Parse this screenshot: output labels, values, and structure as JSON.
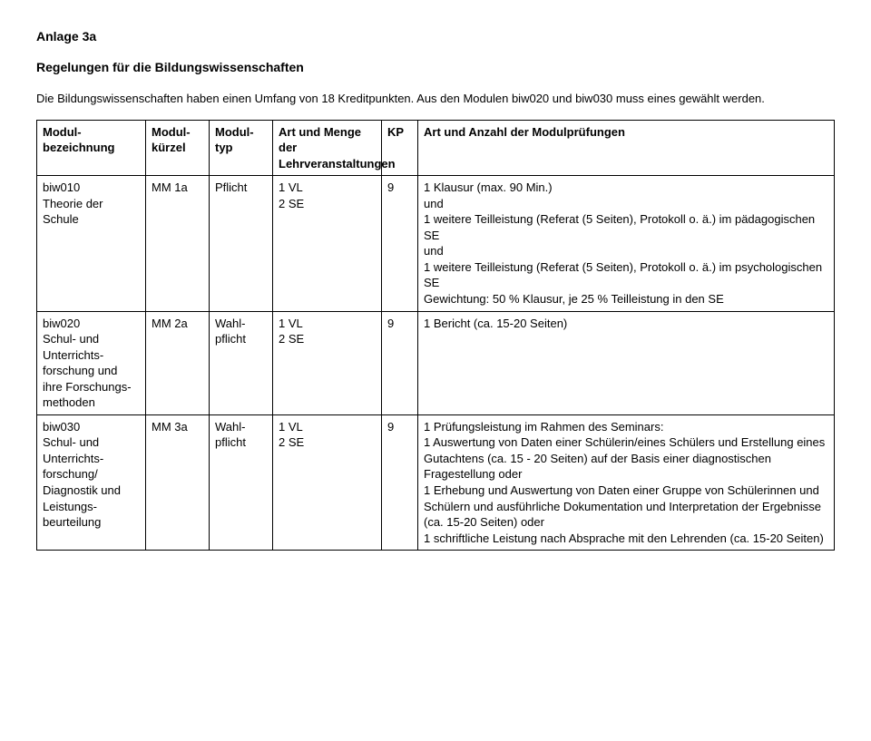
{
  "heading1": "Anlage 3a",
  "heading2": "Regelungen für die Bildungswissenschaften",
  "intro": "Die Bildungswissenschaften haben einen Umfang von 18 Kreditpunkten. Aus den Modulen biw020 und biw030 muss eines gewählt werden.",
  "table": {
    "headers": {
      "c1": "Modul-bezeichnung",
      "c2": "Modul-kürzel",
      "c3": "Modul-typ",
      "c4": "Art und Menge der Lehrveranstaltungen",
      "c5": "KP",
      "c6": "Art und Anzahl der Modulprüfungen"
    },
    "rows": [
      {
        "c1": "biw010\nTheorie der Schule",
        "c2": "MM 1a",
        "c3": "Pflicht",
        "c4": "1 VL\n2 SE",
        "c5": "9",
        "c6": "1 Klausur (max. 90 Min.)\nund\n1 weitere Teilleistung (Referat (5 Seiten), Protokoll o. ä.) im pädagogischen SE\nund\n1 weitere Teilleistung (Referat (5 Seiten), Protokoll o. ä.) im psychologischen SE\nGewichtung: 50 % Klausur, je 25 % Teilleistung in den SE"
      },
      {
        "c1": "biw020\nSchul- und Unterrichts-forschung und ihre Forschungs-methoden",
        "c2": "MM 2a",
        "c3": "Wahl-pflicht",
        "c4": "1 VL\n2 SE",
        "c5": "9",
        "c6": "1 Bericht (ca. 15-20 Seiten)"
      },
      {
        "c1": "biw030\nSchul- und Unterrichts-forschung/ Diagnostik und Leistungs-beurteilung",
        "c2": "MM 3a",
        "c3": "Wahl-pflicht",
        "c4": "1 VL\n2 SE",
        "c5": "9",
        "c6": "1 Prüfungsleistung im Rahmen des Seminars:\n1 Auswertung von Daten einer Schülerin/eines Schülers und Erstellung eines Gutachtens (ca. 15 - 20 Seiten) auf der Basis einer diagnostischen Fragestellung oder\n1 Erhebung und Auswertung von Daten einer Gruppe von Schülerinnen und Schülern und ausführliche Dokumentation und Interpretation der Ergebnisse (ca. 15-20 Seiten) oder\n1 schriftliche Leistung nach Absprache mit den Lehrenden (ca. 15-20 Seiten)"
      }
    ]
  }
}
